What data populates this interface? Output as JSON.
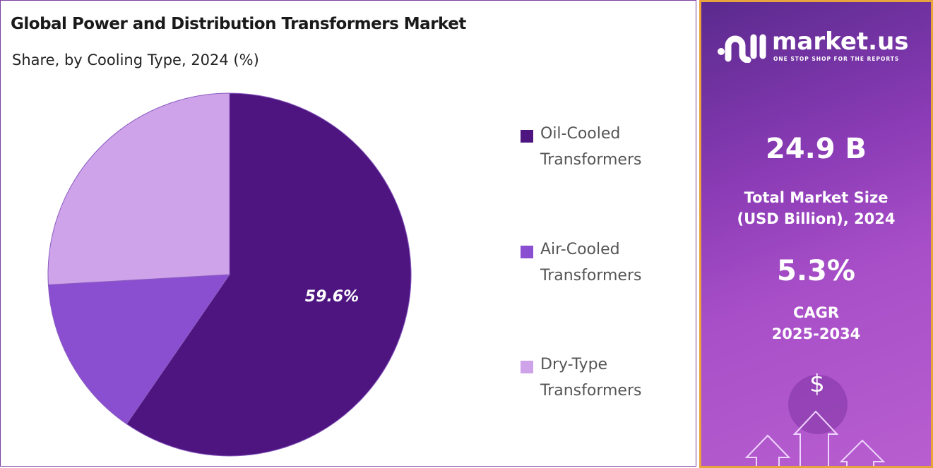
{
  "chart_data": {
    "type": "pie",
    "title": "Global Power and Distribution Transformers Market",
    "subtitle": "Share, by Cooling Type, 2024 (%)",
    "categories": [
      "Oil-Cooled Transformers",
      "Air-Cooled Transformers",
      "Dry-Type Transformers"
    ],
    "legend_lines": [
      [
        "Oil-Cooled",
        "Transformers"
      ],
      [
        "Air-Cooled",
        "Transformers"
      ],
      [
        "Dry-Type",
        "Transformers"
      ]
    ],
    "values": [
      59.6,
      14.5,
      25.9
    ],
    "data_labels": [
      "59.6%",
      "",
      ""
    ],
    "colors": [
      "#4e1581",
      "#8a4fd0",
      "#cfa3ea"
    ],
    "legend_placement": "right"
  },
  "sidebar": {
    "logo_name": "market.us",
    "logo_tagline": "ONE STOP SHOP FOR THE REPORTS",
    "market_size": "24.9 B",
    "market_size_label_1": "Total Market Size",
    "market_size_label_2": "(USD Billion), 2024",
    "cagr": "5.3%",
    "cagr_label_1": "CAGR",
    "cagr_label_2": "2025-2034",
    "icon": "dollar-growth-arrows-icon"
  }
}
